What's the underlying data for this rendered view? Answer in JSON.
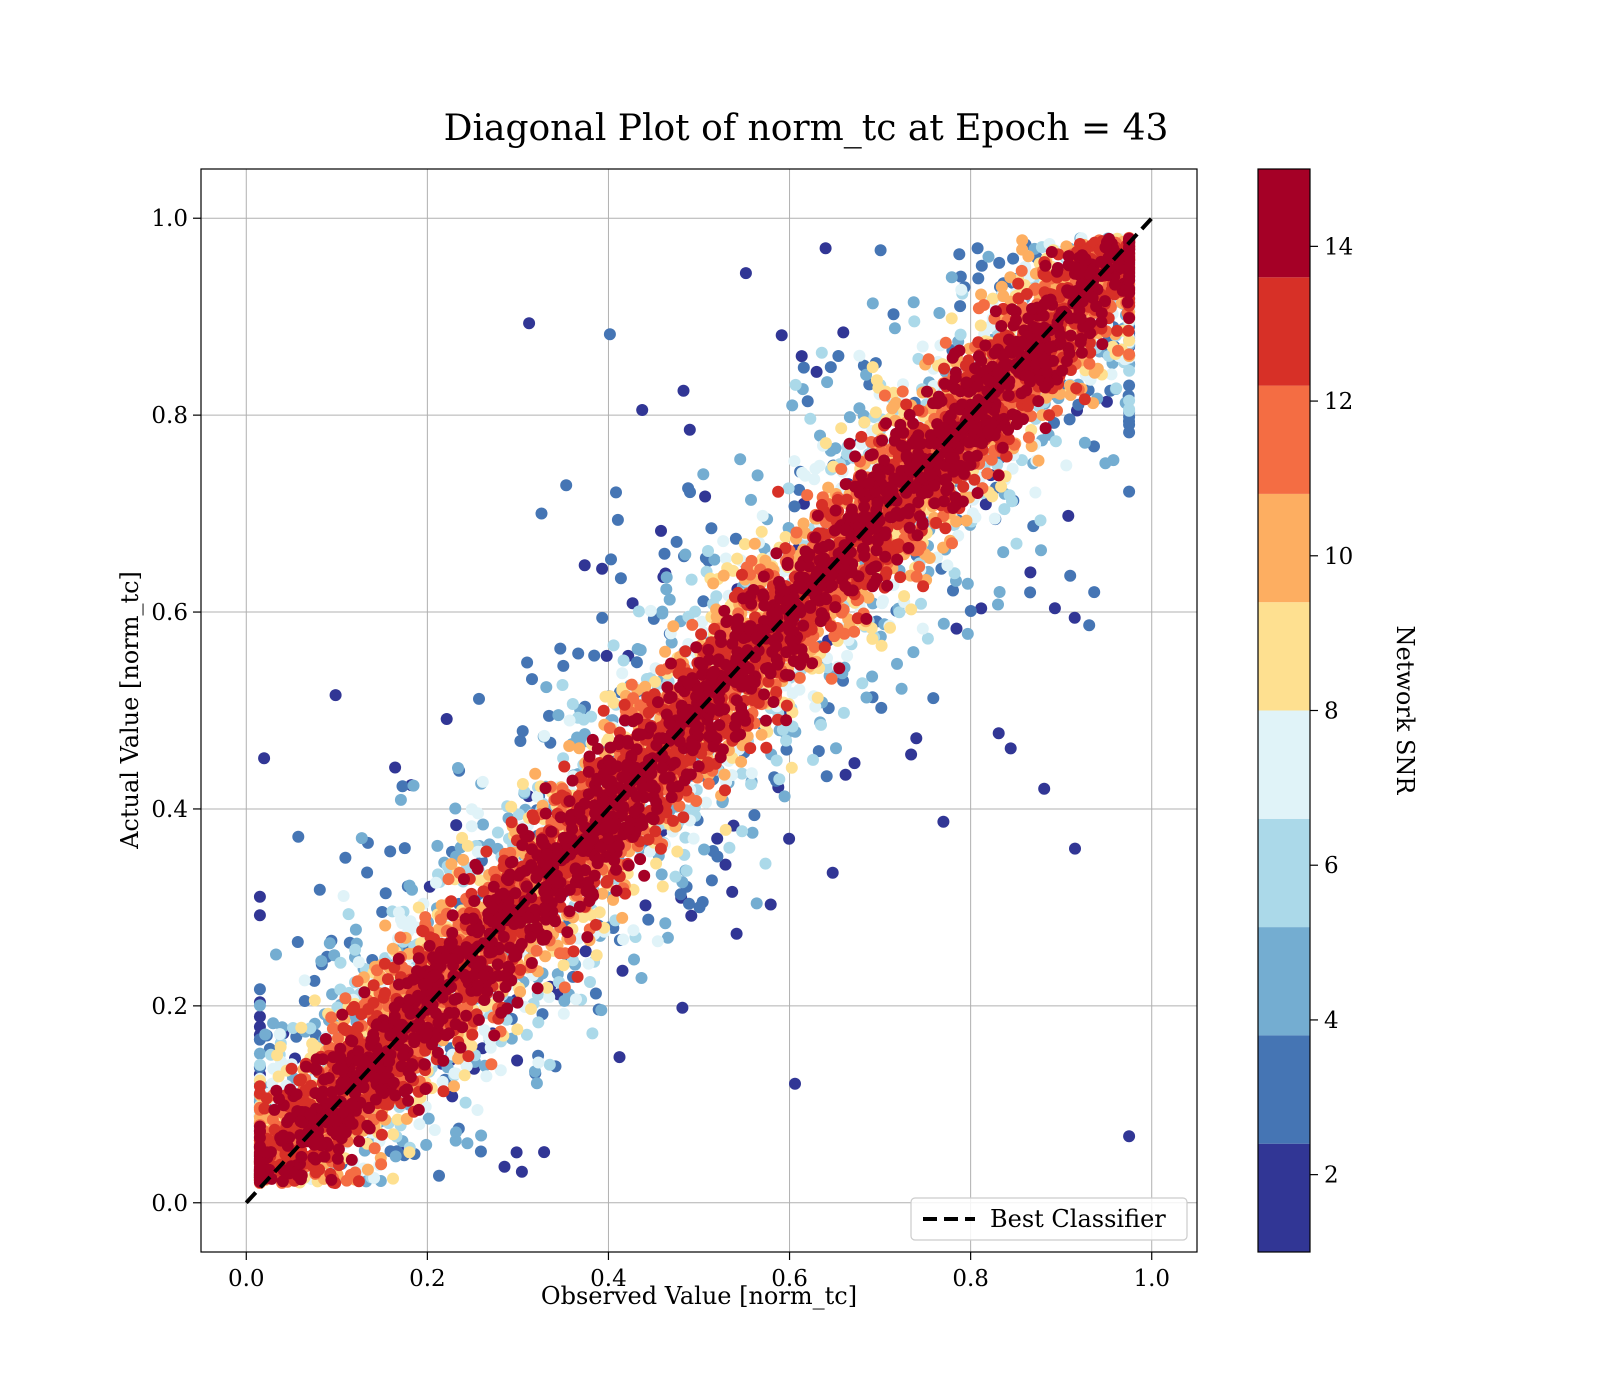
{
  "chart_data": {
    "type": "scatter",
    "title": "Diagonal Plot of norm_tc at Epoch = 43",
    "xlabel": "Observed Value [norm_tc]",
    "ylabel": "Actual Value [norm_tc]",
    "xlim": [
      -0.05,
      1.05
    ],
    "ylim": [
      -0.05,
      1.05
    ],
    "xticks": [
      "0.0",
      "0.2",
      "0.4",
      "0.6",
      "0.8",
      "1.0"
    ],
    "yticks": [
      "0.0",
      "0.2",
      "0.4",
      "0.6",
      "0.8",
      "1.0"
    ],
    "grid": true,
    "legend": {
      "position": "bottom-right",
      "entries": [
        "Best Classifier"
      ]
    },
    "reference_line": {
      "name": "Best Classifier",
      "style": "dashed",
      "color": "#000000",
      "from": [
        0,
        0
      ],
      "to": [
        1,
        1
      ]
    },
    "colorbar": {
      "label": "Network SNR",
      "range": [
        1,
        15
      ],
      "ticks": [
        "2",
        "4",
        "6",
        "8",
        "10",
        "12",
        "14"
      ],
      "colors": [
        "#313695",
        "#4575b4",
        "#74add1",
        "#abd9e9",
        "#e0f3f8",
        "#ffffbf",
        "#fee090",
        "#fdae61",
        "#f46d43",
        "#d73027",
        "#a50026"
      ],
      "bins": 10
    },
    "points_note": "Dense cloud around y = x; high SNR (≈14) concentrated near diagonal, low SNR spread widely toward corners (0,1) and (1,0)."
  }
}
